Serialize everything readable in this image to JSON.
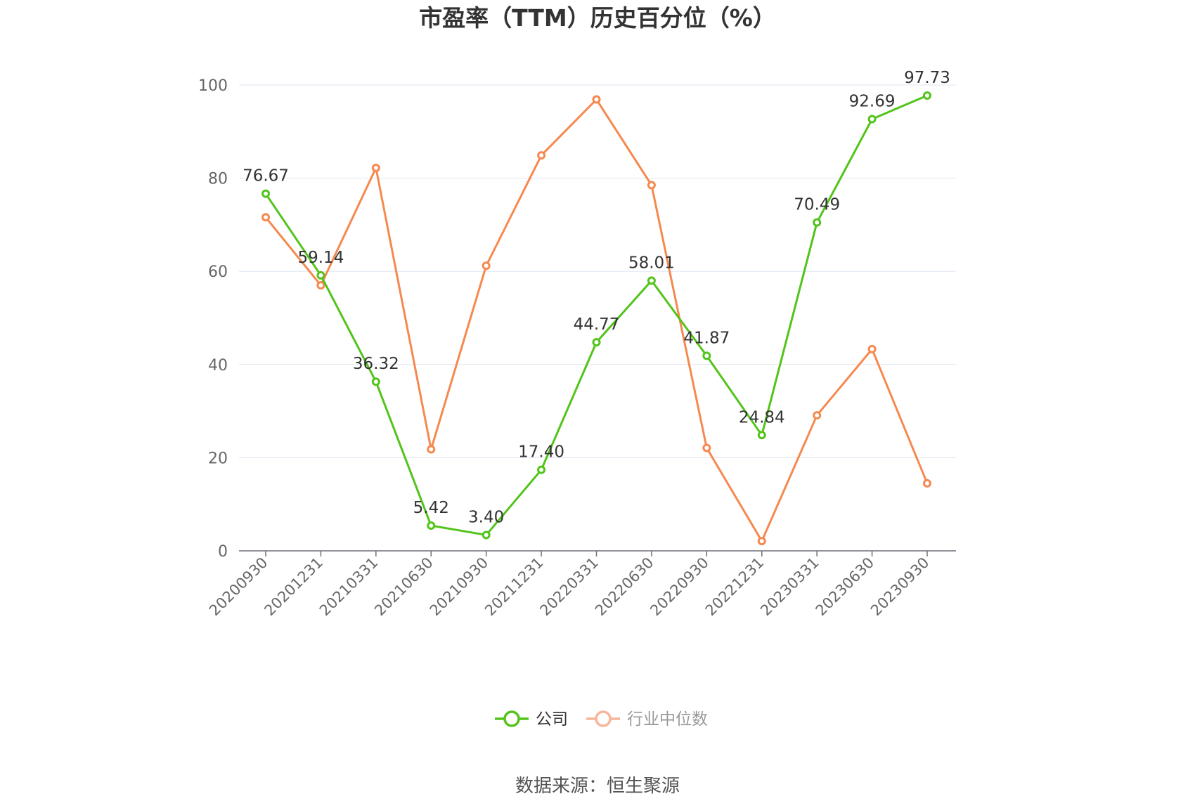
{
  "chart_data": {
    "type": "line",
    "title": "市盈率（TTM）历史百分位（%）",
    "source": "数据来源：恒生聚源",
    "x": [
      "20200930",
      "20201231",
      "20210331",
      "20210630",
      "20210930",
      "20211231",
      "20220331",
      "20220630",
      "20220930",
      "20221231",
      "20230331",
      "20230630",
      "20230930"
    ],
    "ylim": [
      0,
      100
    ],
    "yticks": [
      0,
      20,
      40,
      60,
      80,
      100
    ],
    "grid": true,
    "legend": "bottom-center",
    "series": [
      {
        "name": "公司",
        "color": "#52c41a",
        "values": [
          76.67,
          59.14,
          36.32,
          5.42,
          3.4,
          17.4,
          44.77,
          58.01,
          41.87,
          24.84,
          70.49,
          92.69,
          97.73
        ],
        "labels": [
          "76.67",
          "59.14",
          "36.32",
          "5.42",
          "3.40",
          "17.40",
          "44.77",
          "58.01",
          "41.87",
          "24.84",
          "70.49",
          "92.69",
          "97.73"
        ]
      },
      {
        "name": "行业中位数",
        "color": "#f5894f",
        "values": [
          71.6,
          57.0,
          82.2,
          21.8,
          61.2,
          84.9,
          96.9,
          78.5,
          22.1,
          2.1,
          29.1,
          43.3,
          14.5
        ]
      }
    ]
  }
}
